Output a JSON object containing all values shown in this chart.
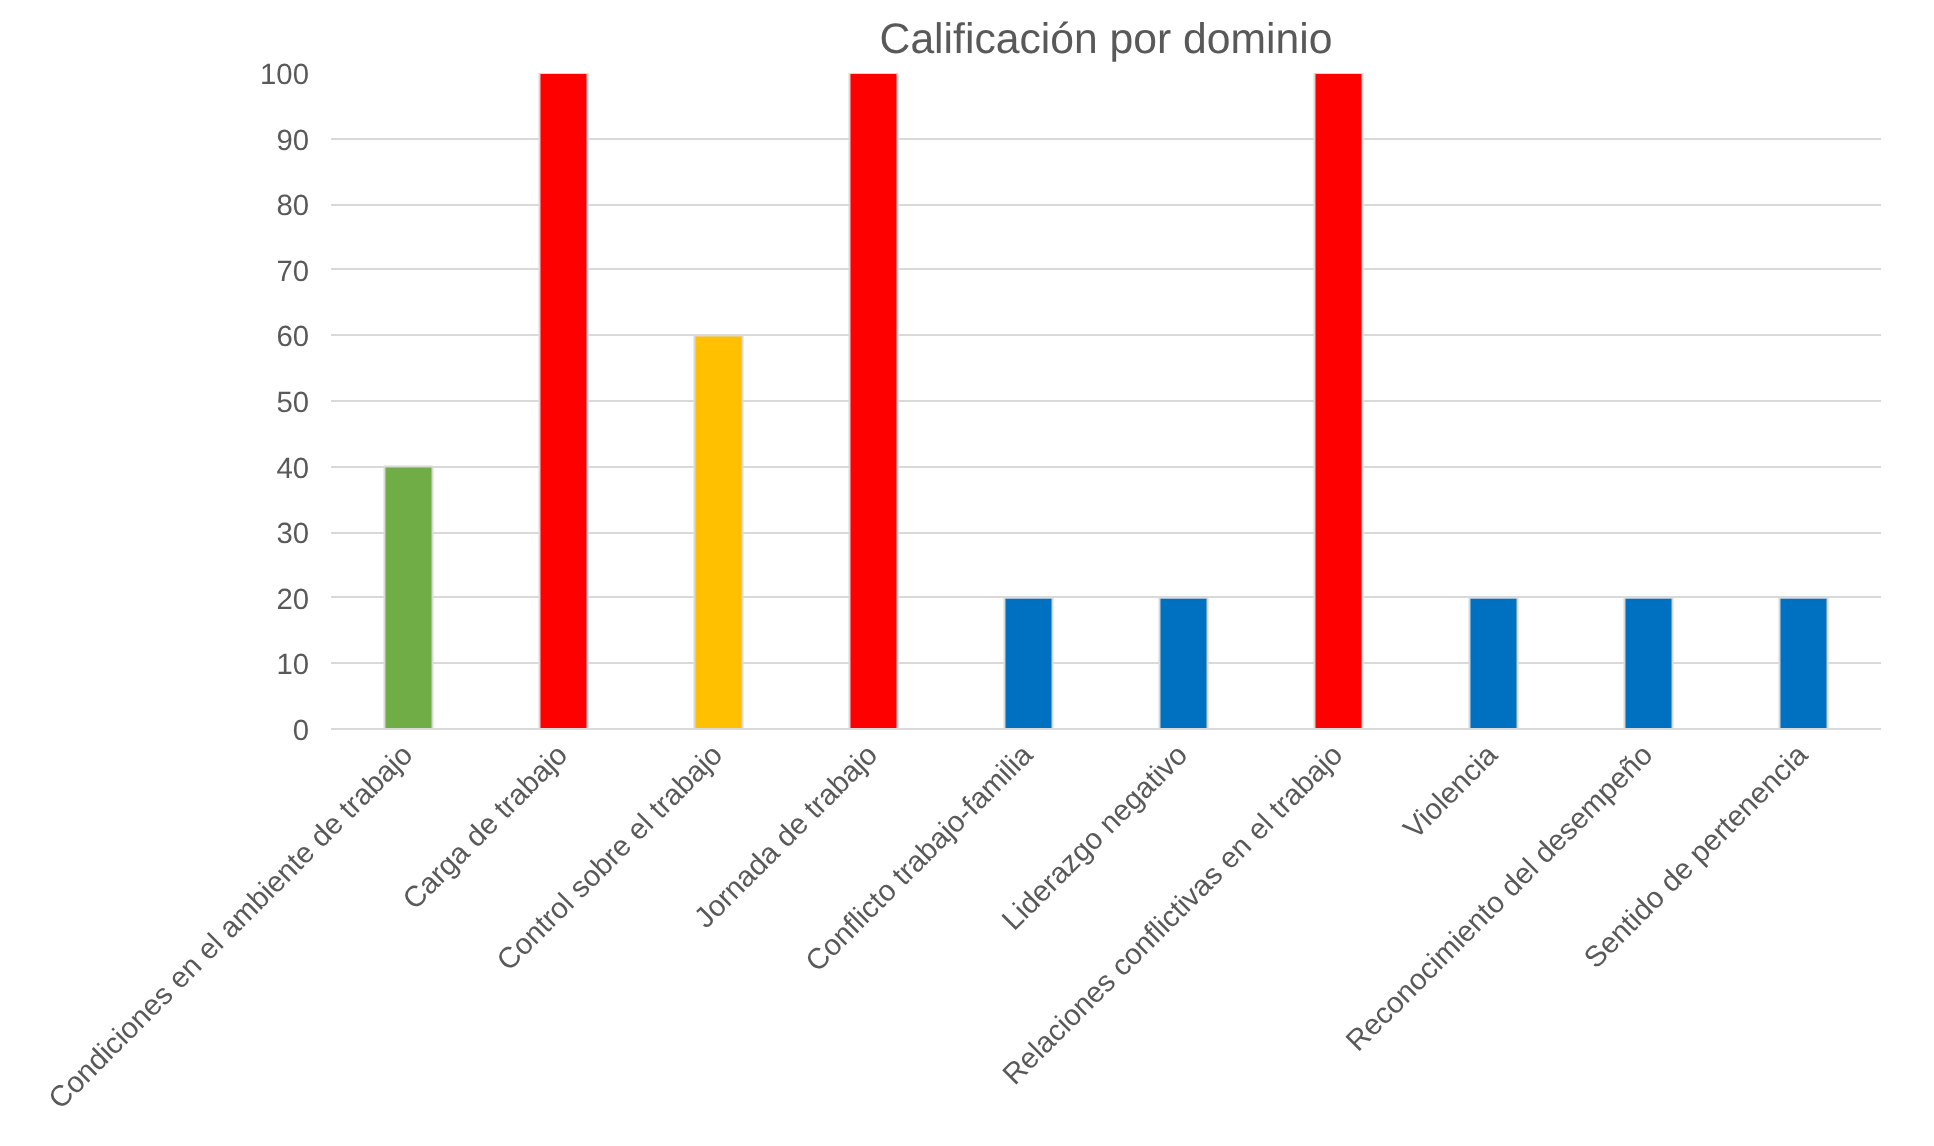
{
  "chart_data": {
    "type": "bar",
    "title": "Calificación por dominio",
    "categories": [
      "Condiciones en el ambiente de trabajo",
      "Carga de trabajo",
      "Control sobre el trabajo",
      "Jornada de trabajo",
      "Conflicto trabajo-familia",
      "Liderazgo negativo",
      "Relaciones conflictivas en el trabajo",
      "Violencia",
      "Reconocimiento del desempeño",
      "Sentido de pertenencia"
    ],
    "values": [
      40,
      100,
      60,
      100,
      20,
      20,
      100,
      20,
      20,
      20
    ],
    "colors": [
      "#70ad47",
      "#ff0000",
      "#ffc000",
      "#ff0000",
      "#0070c0",
      "#0070c0",
      "#ff0000",
      "#0070c0",
      "#0070c0",
      "#0070c0"
    ],
    "ylim": [
      0,
      100
    ],
    "yticks": [
      0,
      10,
      20,
      30,
      40,
      50,
      60,
      70,
      80,
      90,
      100
    ],
    "grid": "y"
  }
}
